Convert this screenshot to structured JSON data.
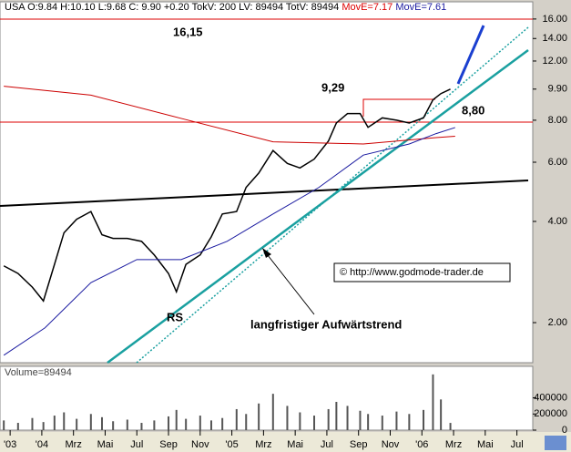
{
  "header": {
    "quote": "USA O:9.84 H:10.10 L:9.68 C: 9.90 +0.20 TokV: 200 LV: 89494 TotV: 89494",
    "ma1": "MovE=7.17",
    "ma2": "MovE=7.61"
  },
  "annotations": {
    "high": "16,15",
    "resistance": "9,29",
    "support": "8,80",
    "rs": "RS",
    "trend": "langfristiger Aufwärtstrend",
    "copyright": "© http://www.godmode-trader.de"
  },
  "chart_data": [
    {
      "type": "line",
      "log_y": true,
      "xlim": [
        -2.64,
        31.0
      ],
      "xticks": [
        {
          "value": -2,
          "label": "'03"
        },
        {
          "value": 0,
          "label": "'04"
        },
        {
          "value": 2,
          "label": "Mrz"
        },
        {
          "value": 4,
          "label": "Mai"
        },
        {
          "value": 6,
          "label": "Jul"
        },
        {
          "value": 8,
          "label": "Sep"
        },
        {
          "value": 10,
          "label": "Nov"
        },
        {
          "value": 12,
          "label": "'05"
        },
        {
          "value": 14,
          "label": "Mrz"
        },
        {
          "value": 16,
          "label": "Mai"
        },
        {
          "value": 18,
          "label": "Jul"
        },
        {
          "value": 20,
          "label": "Sep"
        },
        {
          "value": 22,
          "label": "Nov"
        },
        {
          "value": 24,
          "label": "'06"
        },
        {
          "value": 26,
          "label": "Mrz"
        },
        {
          "value": 28,
          "label": "Mai"
        },
        {
          "value": 30,
          "label": "Jul"
        }
      ],
      "ylim": [
        1.52,
        18.0
      ],
      "yticks": [
        {
          "value": 2,
          "label": "2.00"
        },
        {
          "value": 4,
          "label": "4.00"
        },
        {
          "value": 6,
          "label": "6.00"
        },
        {
          "value": 8,
          "label": "8.00"
        },
        {
          "value": 9.9,
          "label": "9.90"
        },
        {
          "value": 12,
          "label": "12.00"
        },
        {
          "value": 14,
          "label": "14.00"
        },
        {
          "value": 16,
          "label": "16.00"
        }
      ],
      "series": [
        {
          "color": "#000000",
          "x": [
            -2.4,
            -1.5,
            -0.6,
            0.1,
            0.8,
            1.4,
            2.2,
            3.1,
            3.8,
            4.5,
            5.4,
            6.3,
            7.1,
            8.0,
            8.5,
            9.1,
            10.0,
            10.7,
            11.4,
            12.3,
            12.9,
            13.7,
            14.6,
            15.5,
            16.3,
            17.2,
            18.1,
            18.6,
            19.3,
            20.1,
            20.6,
            21.5,
            22.4,
            23.2,
            24.1,
            24.7,
            25.2,
            25.8
          ],
          "values": [
            2.95,
            2.8,
            2.55,
            2.32,
            2.98,
            3.7,
            4.06,
            4.28,
            3.65,
            3.56,
            3.56,
            3.49,
            3.18,
            2.8,
            2.47,
            2.98,
            3.18,
            3.6,
            4.21,
            4.28,
            5.05,
            5.57,
            6.5,
            5.95,
            5.77,
            6.13,
            6.94,
            7.85,
            8.37,
            8.37,
            7.62,
            8.13,
            8.0,
            7.85,
            8.13,
            9.2,
            9.6,
            9.9
          ]
        },
        {
          "color": "#cc0000",
          "x": [
            -2.4,
            3.1,
            8.8,
            14.6,
            20.3,
            24.9,
            26.1
          ],
          "values": [
            10.1,
            9.5,
            8.1,
            6.9,
            6.8,
            7.1,
            7.17
          ]
        },
        {
          "color": "#1a1aa0",
          "x": [
            -2.4,
            0.2,
            3.1,
            6.0,
            8.8,
            11.7,
            14.6,
            17.5,
            20.3,
            23.2,
            24.9,
            26.1
          ],
          "values": [
            1.6,
            1.93,
            2.63,
            3.08,
            3.08,
            3.49,
            4.21,
            5.05,
            6.3,
            6.8,
            7.3,
            7.61
          ]
        }
      ]
    },
    {
      "type": "bar",
      "title": "Volume=89494",
      "color": "#555555",
      "xlim": [
        -2.64,
        31.0
      ],
      "ylim": [
        0,
        790000
      ],
      "yticks": [
        0,
        200000,
        400000
      ],
      "x": [
        -2.4,
        -1.5,
        -0.6,
        0.1,
        0.8,
        1.4,
        2.2,
        3.1,
        3.8,
        4.5,
        5.4,
        6.3,
        7.1,
        8.0,
        8.5,
        9.1,
        10.0,
        10.7,
        11.4,
        12.3,
        12.9,
        13.7,
        14.6,
        15.5,
        16.3,
        17.2,
        18.1,
        18.6,
        19.3,
        20.1,
        20.6,
        21.5,
        22.4,
        23.2,
        24.1,
        24.7,
        25.2,
        25.8
      ],
      "values": [
        120000,
        90000,
        150000,
        100000,
        180000,
        220000,
        140000,
        200000,
        160000,
        110000,
        130000,
        90000,
        120000,
        170000,
        250000,
        140000,
        180000,
        120000,
        150000,
        260000,
        200000,
        330000,
        450000,
        300000,
        220000,
        180000,
        260000,
        350000,
        300000,
        240000,
        200000,
        180000,
        230000,
        200000,
        250000,
        690000,
        380000,
        89494
      ]
    }
  ]
}
